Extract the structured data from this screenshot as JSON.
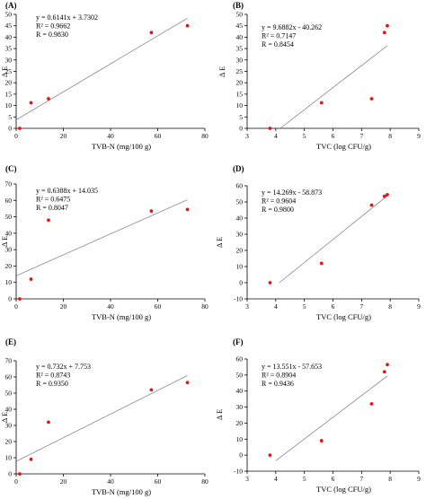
{
  "chart_data": [
    {
      "id": "A",
      "type": "scatter",
      "panel_label": "(A)",
      "xlabel": "TVB-N (mg/100 g)",
      "ylabel": "Δ E",
      "xlim": [
        0,
        80
      ],
      "ylim": [
        0,
        50
      ],
      "x_ticks": [
        0,
        20,
        40,
        60,
        80
      ],
      "y_ticks": [
        0,
        5,
        10,
        15,
        20,
        25,
        30,
        35,
        40,
        45,
        50
      ],
      "points": [
        [
          1.5,
          0
        ],
        [
          6.3,
          11.2
        ],
        [
          13.7,
          13.0
        ],
        [
          57.3,
          42.0
        ],
        [
          72.6,
          45.0
        ]
      ],
      "trendline": {
        "slope": 0.6141,
        "intercept": 3.7302,
        "x_range": [
          0,
          72.6
        ]
      },
      "annotations": [
        "y = 0.6141x + 3.7302",
        "R² = 0.9662",
        "R = 0.9830"
      ],
      "point_color": "#e8140f",
      "line_color": "#7a7a7a"
    },
    {
      "id": "B",
      "type": "scatter",
      "panel_label": "(B)",
      "xlabel": "TVC (log CFU/g)",
      "ylabel": "Δ E",
      "xlim": [
        3,
        9
      ],
      "ylim": [
        0,
        50
      ],
      "x_ticks": [
        3,
        4,
        5,
        6,
        7,
        8,
        9
      ],
      "y_ticks": [
        0,
        5,
        10,
        15,
        20,
        25,
        30,
        35,
        40,
        45,
        50
      ],
      "points": [
        [
          3.8,
          0
        ],
        [
          5.6,
          11.2
        ],
        [
          7.35,
          13.0
        ],
        [
          7.8,
          42.0
        ],
        [
          7.9,
          45.0
        ]
      ],
      "trendline": {
        "slope": 9.6882,
        "intercept": -40.262,
        "x_range": [
          4.156,
          7.9
        ]
      },
      "annotations": [
        "y = 9.6882x - 40.262",
        "R² = 0.7147",
        "R = 0.8454"
      ],
      "point_color": "#e8140f",
      "line_color": "#7a7a7a"
    },
    {
      "id": "C",
      "type": "scatter",
      "panel_label": "(C)",
      "xlabel": "TVB-N (mg/100 g)",
      "ylabel": "Δ E",
      "xlim": [
        0,
        80
      ],
      "ylim": [
        0,
        70
      ],
      "x_ticks": [
        0,
        20,
        40,
        60,
        80
      ],
      "y_ticks": [
        0,
        10,
        20,
        30,
        40,
        50,
        60,
        70
      ],
      "points": [
        [
          1.5,
          0
        ],
        [
          6.3,
          12.0
        ],
        [
          13.7,
          48.0
        ],
        [
          57.3,
          53.5
        ],
        [
          72.6,
          54.5
        ]
      ],
      "trendline": {
        "slope": 0.6388,
        "intercept": 14.035,
        "x_range": [
          0,
          72.6
        ]
      },
      "annotations": [
        "y = 0.6388x + 14.035",
        "R² = 0.6475",
        "R = 0.8047"
      ],
      "point_color": "#e8140f",
      "line_color": "#7a7a7a"
    },
    {
      "id": "D",
      "type": "scatter",
      "panel_label": "(D)",
      "xlabel": "TVC (log CFU/g)",
      "ylabel": "Δ E",
      "xlim": [
        3,
        9
      ],
      "ylim": [
        -10,
        60
      ],
      "x_ticks": [
        3,
        4,
        5,
        6,
        7,
        8,
        9
      ],
      "y_ticks": [
        -10,
        0,
        10,
        20,
        30,
        40,
        50,
        60
      ],
      "points": [
        [
          3.8,
          0
        ],
        [
          5.6,
          12.0
        ],
        [
          7.35,
          48.0
        ],
        [
          7.8,
          53.5
        ],
        [
          7.9,
          54.5
        ]
      ],
      "trendline": {
        "slope": 14.269,
        "intercept": -58.873,
        "x_range": [
          4.13,
          7.9
        ]
      },
      "annotations": [
        "y = 14.269x - 58.873",
        "R² = 0.9604",
        "R = 0.9800"
      ],
      "point_color": "#e8140f",
      "line_color": "#7a7a7a"
    },
    {
      "id": "E",
      "type": "scatter",
      "panel_label": "(E)",
      "xlabel": "TVB-N (mg/100 g)",
      "ylabel": "Δ E",
      "xlim": [
        0,
        80
      ],
      "ylim": [
        0,
        70
      ],
      "x_ticks": [
        0,
        20,
        40,
        60,
        80
      ],
      "y_ticks": [
        0,
        10,
        20,
        30,
        40,
        50,
        60,
        70
      ],
      "points": [
        [
          1.5,
          0
        ],
        [
          6.3,
          9.0
        ],
        [
          13.7,
          32.0
        ],
        [
          57.3,
          52.0
        ],
        [
          72.6,
          56.5
        ]
      ],
      "trendline": {
        "slope": 0.732,
        "intercept": 7.753,
        "x_range": [
          0,
          72.6
        ]
      },
      "annotations": [
        "y = 0.732x + 7.753",
        "R² = 0.8743",
        "R = 0.9350"
      ],
      "point_color": "#e8140f",
      "line_color": "#7a7a7a"
    },
    {
      "id": "F",
      "type": "scatter",
      "panel_label": "(F)",
      "xlabel": "TVC (log CFU/g)",
      "ylabel": "Δ E",
      "xlim": [
        3,
        9
      ],
      "ylim": [
        -10,
        60
      ],
      "x_ticks": [
        3,
        4,
        5,
        6,
        7,
        8,
        9
      ],
      "y_ticks": [
        -10,
        0,
        10,
        20,
        30,
        40,
        50,
        60
      ],
      "points": [
        [
          3.8,
          0
        ],
        [
          5.6,
          9.0
        ],
        [
          7.35,
          32.0
        ],
        [
          7.8,
          52.0
        ],
        [
          7.9,
          56.5
        ]
      ],
      "trendline": {
        "slope": 13.551,
        "intercept": -57.653,
        "x_range": [
          4.0,
          7.9
        ]
      },
      "annotations": [
        "y = 13.551x - 57.653",
        "R² = 0.8904",
        "R = 0.9436"
      ],
      "point_color": "#e8140f",
      "line_color": "#7a7a7a"
    }
  ]
}
